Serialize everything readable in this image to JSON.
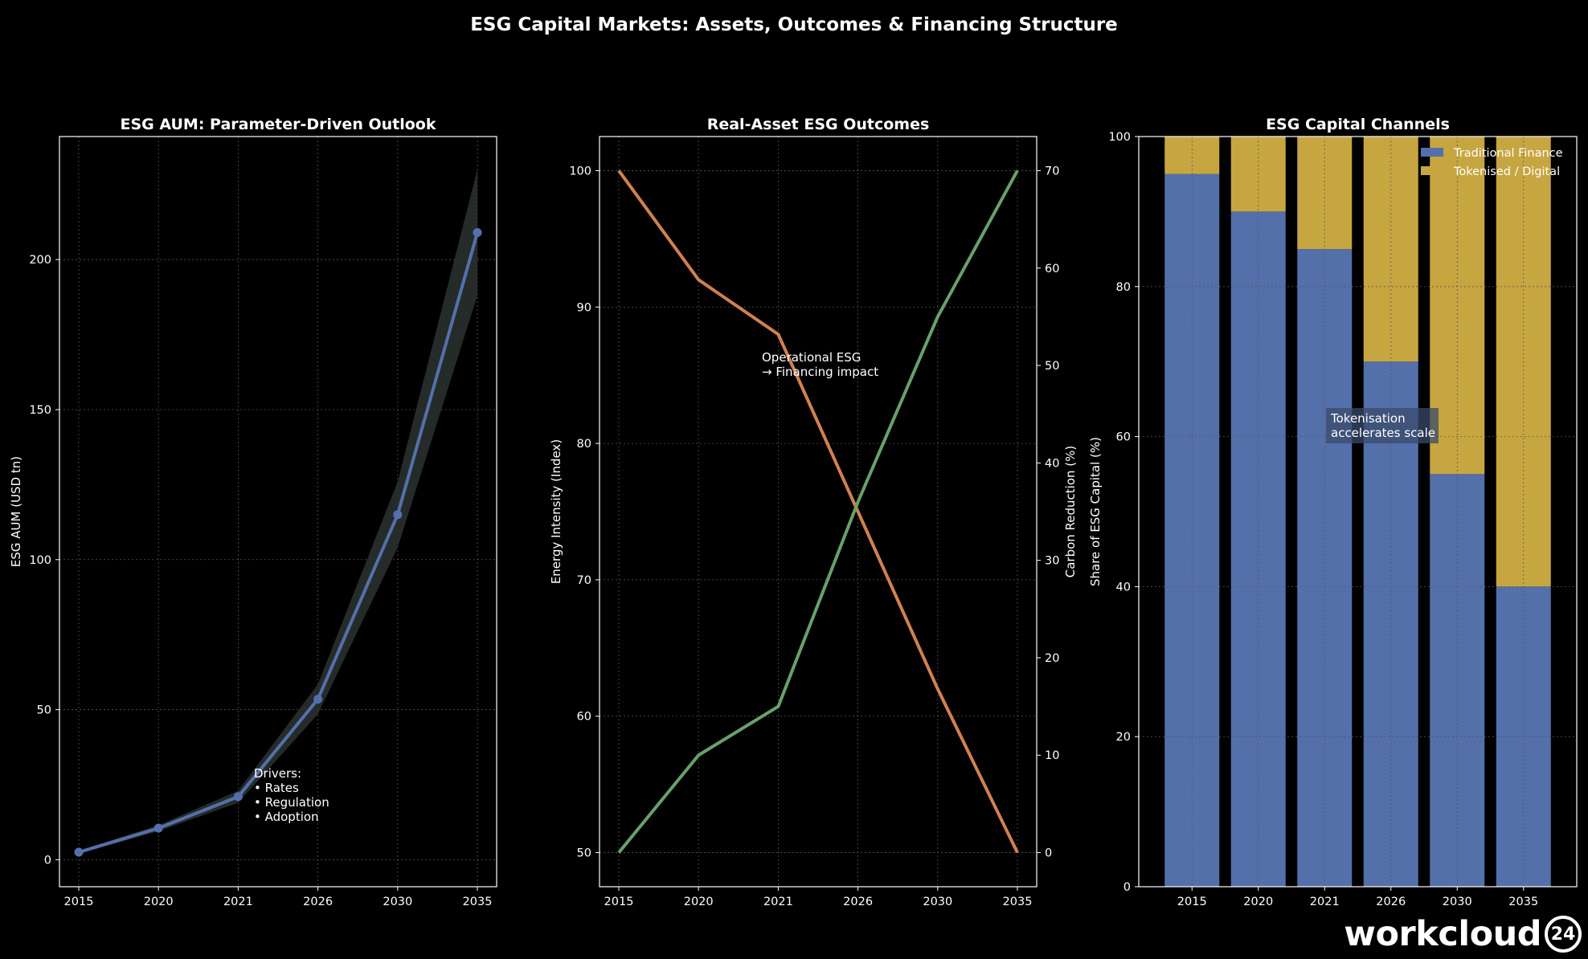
{
  "suptitle": "ESG Capital Markets: Assets, Outcomes & Financing Structure",
  "colors": {
    "bg": "#000000",
    "blue": "#5470ab",
    "orange": "#d08150",
    "green": "#68a06b",
    "gold": "#c6a640",
    "band": "#2b332f"
  },
  "watermark": {
    "text": "workcloud",
    "mark": "24"
  },
  "chart_data": [
    {
      "type": "line",
      "title": "ESG AUM: Parameter-Driven Outlook",
      "ylabel": "ESG AUM (USD tn)",
      "categories": [
        "2015",
        "2020",
        "2021",
        "2026",
        "2030",
        "2035"
      ],
      "series": [
        {
          "name": "ESG AUM",
          "values": [
            2.5,
            10.5,
            21,
            53.5,
            115,
            209
          ]
        }
      ],
      "band_low": [
        2,
        9.5,
        19,
        48.5,
        104,
        188
      ],
      "band_high": [
        3,
        11.5,
        23,
        58.5,
        126,
        230
      ],
      "ylim": [
        -9,
        241
      ],
      "yticks": [
        0,
        50,
        100,
        150,
        200
      ],
      "annotation": {
        "lines": [
          "Drivers:",
          "• Rates",
          "• Regulation",
          "• Adoption"
        ]
      },
      "grid": true
    },
    {
      "type": "line",
      "title": "Real-Asset ESG Outcomes",
      "ylabel": "Energy Intensity (Index)",
      "ylabel_right": "Carbon Reduction (%)",
      "categories": [
        "2015",
        "2020",
        "2021",
        "2026",
        "2030",
        "2035"
      ],
      "series": [
        {
          "name": "Energy Intensity",
          "axis": "left",
          "values": [
            100,
            92,
            88,
            75,
            62,
            50
          ]
        },
        {
          "name": "Carbon Reduction",
          "axis": "right",
          "values": [
            0,
            10,
            15,
            36,
            55,
            70
          ]
        }
      ],
      "ylim": [
        47.5,
        102.5
      ],
      "yticks": [
        50,
        60,
        70,
        80,
        90,
        100
      ],
      "ylim_right": [
        -3.5,
        73.5
      ],
      "yticks_right": [
        0,
        10,
        20,
        30,
        40,
        50,
        60,
        70
      ],
      "annotation": {
        "lines": [
          "Operational ESG",
          "→ Financing impact"
        ]
      },
      "grid": true
    },
    {
      "type": "bar",
      "stacked": true,
      "title": "ESG Capital Channels",
      "ylabel": "Share of ESG Capital (%)",
      "categories": [
        "2015",
        "2020",
        "2021",
        "2026",
        "2030",
        "2035"
      ],
      "series": [
        {
          "name": "Traditional Finance",
          "values": [
            95,
            90,
            85,
            70,
            55,
            40
          ]
        },
        {
          "name": "Tokenised / Digital",
          "values": [
            5,
            10,
            15,
            30,
            45,
            60
          ]
        }
      ],
      "ylim": [
        0,
        100
      ],
      "yticks": [
        0,
        20,
        40,
        60,
        80,
        100
      ],
      "legend": "top-right",
      "annotation": {
        "lines": [
          "Tokenisation",
          "accelerates scale"
        ]
      },
      "grid": true
    }
  ]
}
